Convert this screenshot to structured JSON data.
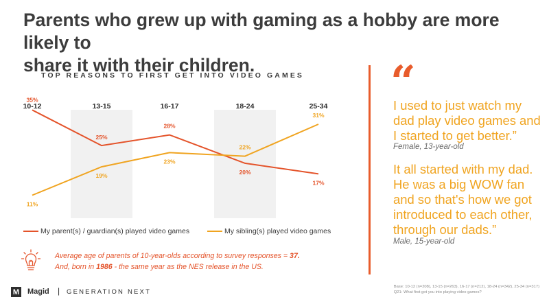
{
  "headline": {
    "line1": "Parents who grew up with gaming as a hobby are more likely to",
    "line2": "share it with their children."
  },
  "chart_data": {
    "type": "line",
    "title": "TOP REASONS TO FIRST GET INTO VIDEO GAMES",
    "categories": [
      "10-12",
      "13-15",
      "16-17",
      "18-24",
      "25-34"
    ],
    "shaded_categories": [
      "13-15",
      "18-24"
    ],
    "series": [
      {
        "name": "My parent(s) / guardian(s) played video games",
        "color": "#e4532a",
        "values": [
          35,
          25,
          28,
          20,
          17
        ],
        "labels": [
          "35%",
          "25%",
          "28%",
          "20%",
          "17%"
        ]
      },
      {
        "name": "My sibling(s) played video games",
        "color": "#f0a420",
        "values": [
          11,
          19,
          23,
          22,
          31
        ],
        "labels": [
          "11%",
          "19%",
          "23%",
          "22%",
          "31%"
        ]
      }
    ],
    "ylim": [
      8,
      37
    ],
    "grid": false,
    "legend": "bottom"
  },
  "note": {
    "line1_pre": "Average age of parents of 10-year-olds according to survey responses = ",
    "line1_value": "37.",
    "line2_pre": "And, born in ",
    "line2_value": "1986",
    "line2_post": " -  the same year as the NES release in the US."
  },
  "quotes": {
    "mark": "“",
    "q1_lines": [
      "I used to just watch my",
      "dad play video games and",
      "I started to get better.”"
    ],
    "q1_attrib": "Female, 13-year-old",
    "q2_lines": [
      "It all started with my dad.",
      "He was a big WOW fan",
      "and so that's how we got",
      "introduced to each other,",
      "through our dads.”"
    ],
    "q2_attrib": "Male, 15-year-old"
  },
  "footer": {
    "logo_letter": "M",
    "brand": "Magid",
    "separator": "|",
    "tagline": "GENERATION NEXT",
    "base_line1": "Base: 10-12 (n=208), 13-15 (n=263), 16-17 (n=212), 18-24 (n=342), 25-34 (n=317)",
    "base_line2": "Q21: What first got you into playing video games?"
  },
  "colors": {
    "accent_red": "#e4532a",
    "accent_orange": "#f0a420",
    "shade": "#f1f1f1"
  },
  "icons": [
    "lightbulb-icon"
  ]
}
